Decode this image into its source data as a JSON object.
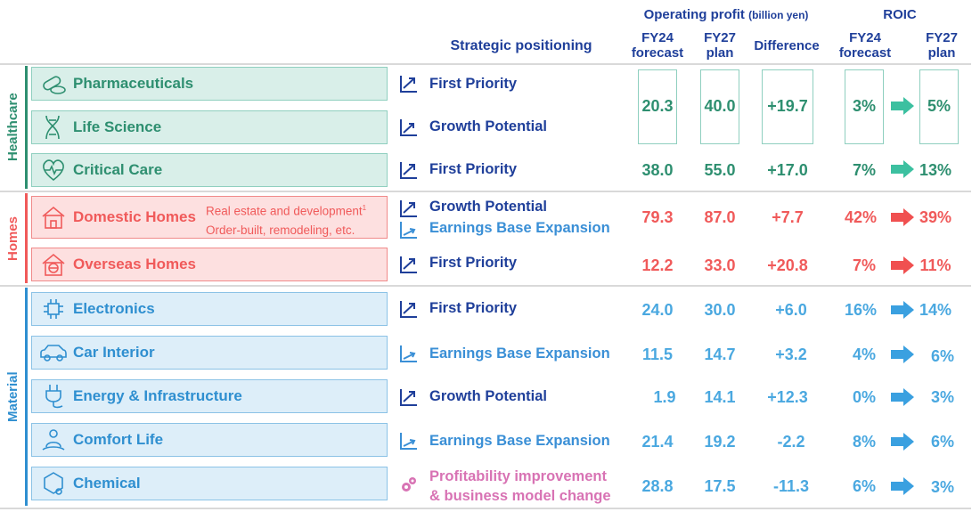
{
  "header": {
    "strategic": "Strategic positioning",
    "op_profit": "Operating profit",
    "op_profit_unit": "(billion yen)",
    "roic": "ROIC",
    "fy24_a": "FY24",
    "fy24_b": "forecast",
    "fy27_a": "FY27",
    "fy27_b": "plan",
    "difference": "Difference",
    "roic_fy24_a": "FY24",
    "roic_fy24_b": "forecast",
    "roic_fy27_a": "FY27",
    "roic_fy27_b": "plan"
  },
  "segments": {
    "healthcare": "Healthcare",
    "homes": "Homes",
    "material": "Material"
  },
  "colors": {
    "healthcare": "#2e8f70",
    "homes": "#f05a5a",
    "material": "#2f8fd0",
    "material_num": "#4aa8e0",
    "strategy": "#1f3f9a",
    "strategy_light": "#3a8fd6",
    "pink": "#d873b4",
    "arrow_hc": "#3cc0a0",
    "arrow_hm": "#f05050",
    "arrow_mt": "#3aa0e0"
  },
  "rows": {
    "pharma": {
      "name": "Pharmaceuticals",
      "icon": "pill-icon",
      "strategy": "First Priority"
    },
    "lifesci": {
      "name": "Life Science",
      "icon": "dna-icon",
      "strategy": "Growth Potential"
    },
    "hc_merged": {
      "fy24": "20.3",
      "fy27": "40.0",
      "diff": "+19.7",
      "roic24": "3%",
      "roic27": "5%"
    },
    "critical": {
      "name": "Critical Care",
      "icon": "heart-icon",
      "strategy": "First Priority",
      "fy24": "38.0",
      "fy27": "55.0",
      "diff": "+17.0",
      "roic24": "7%",
      "roic27": "13%"
    },
    "domestic": {
      "name": "Domestic Homes",
      "icon": "house-icon",
      "note1": "Real estate and development",
      "note1_sup": "1",
      "note2": "Order-built, remodeling, etc.",
      "strategy1": "Growth Potential",
      "strategy2": "Earnings Base Expansion",
      "fy24": "79.3",
      "fy27": "87.0",
      "diff": "+7.7",
      "roic24": "42%",
      "roic27": "39%"
    },
    "overseas": {
      "name": "Overseas Homes",
      "icon": "globe-house-icon",
      "strategy": "First Priority",
      "fy24": "12.2",
      "fy27": "33.0",
      "diff": "+20.8",
      "roic24": "7%",
      "roic27": "11%"
    },
    "electronics": {
      "name": "Electronics",
      "icon": "chip-icon",
      "strategy": "First Priority",
      "fy24": "24.0",
      "fy27": "30.0",
      "diff": "+6.0",
      "roic24": "16%",
      "roic27": "14%"
    },
    "car": {
      "name": "Car Interior",
      "icon": "car-icon",
      "strategy": "Earnings Base Expansion",
      "fy24": "11.5",
      "fy27": "14.7",
      "diff": "+3.2",
      "roic24": "4%",
      "roic27": "6%"
    },
    "energy": {
      "name": "Energy & Infrastructure",
      "icon": "plug-icon",
      "strategy": "Growth Potential",
      "fy24": "1.9",
      "fy27": "14.1",
      "diff": "+12.3",
      "roic24": "0%",
      "roic27": "3%"
    },
    "comfort": {
      "name": "Comfort Life",
      "icon": "person-icon",
      "strategy": "Earnings Base Expansion",
      "fy24": "21.4",
      "fy27": "19.2",
      "diff": "-2.2",
      "roic24": "8%",
      "roic27": "6%"
    },
    "chemical": {
      "name": "Chemical",
      "icon": "molecule-icon",
      "strategy1": "Profitability improvement",
      "strategy2": "& business model change",
      "fy24": "28.8",
      "fy27": "17.5",
      "diff": "-11.3",
      "roic24": "6%",
      "roic27": "3%"
    }
  }
}
